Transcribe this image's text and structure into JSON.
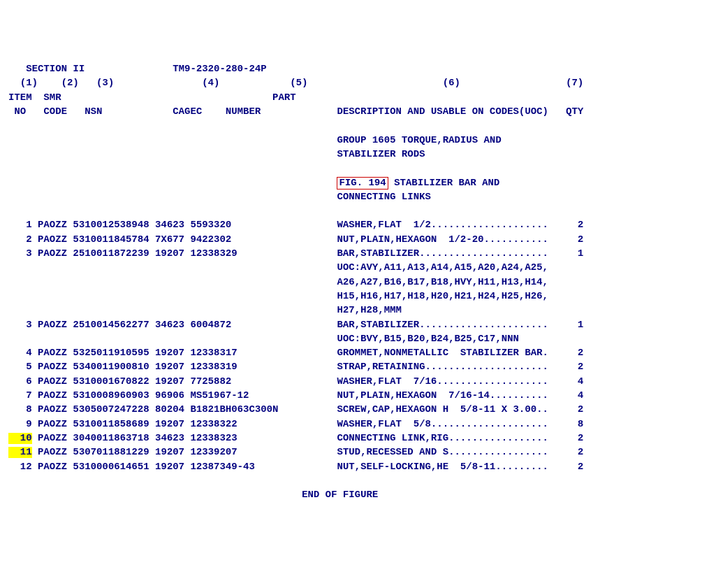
{
  "header": {
    "section_label": "SECTION II",
    "manual_number": "TM9-2320-280-24P",
    "col_nums": [
      "(1)",
      "(2)",
      "(3)",
      "(4)",
      "(5)",
      "(6)",
      "(7)"
    ],
    "col1a": "ITEM",
    "col2a": "SMR",
    "col5a": "PART",
    "col1b": "NO",
    "col2b": "CODE",
    "col3b": "NSN",
    "col4b": "CAGEC",
    "col5b": "NUMBER",
    "col6b": "DESCRIPTION AND USABLE ON CODES(UOC)",
    "col7b": "QTY"
  },
  "group_line1": "GROUP 1605 TORQUE,RADIUS AND",
  "group_line2": "STABILIZER RODS",
  "fig_label": "FIG. 194",
  "fig_title_rest": " STABILIZER BAR AND",
  "fig_title_line2": "CONNECTING LINKS",
  "highlight_item_10": "10",
  "highlight_item_11": "11",
  "rows": [
    {
      "no": "1",
      "smr": "PAOZZ",
      "nsn": "5310012538948",
      "cagec": "34623",
      "part": "5593320",
      "desc": "WASHER,FLAT  1/2....................",
      "qty": "2"
    },
    {
      "no": "2",
      "smr": "PAOZZ",
      "nsn": "5310011845784",
      "cagec": "7X677",
      "part": "9422302",
      "desc": "NUT,PLAIN,HEXAGON  1/2-20...........",
      "qty": "2"
    },
    {
      "no": "3",
      "smr": "PAOZZ",
      "nsn": "2510011872239",
      "cagec": "19207",
      "part": "12338329",
      "desc": "BAR,STABILIZER......................",
      "qty": "1"
    },
    {
      "no": "",
      "smr": "",
      "nsn": "",
      "cagec": "",
      "part": "",
      "desc": "UOC:AVY,A11,A13,A14,A15,A20,A24,A25,",
      "qty": ""
    },
    {
      "no": "",
      "smr": "",
      "nsn": "",
      "cagec": "",
      "part": "",
      "desc": "A26,A27,B16,B17,B18,HVY,H11,H13,H14,",
      "qty": ""
    },
    {
      "no": "",
      "smr": "",
      "nsn": "",
      "cagec": "",
      "part": "",
      "desc": "H15,H16,H17,H18,H20,H21,H24,H25,H26,",
      "qty": ""
    },
    {
      "no": "",
      "smr": "",
      "nsn": "",
      "cagec": "",
      "part": "",
      "desc": "H27,H28,MMM",
      "qty": ""
    },
    {
      "no": "3",
      "smr": "PAOZZ",
      "nsn": "2510014562277",
      "cagec": "34623",
      "part": "6004872",
      "desc": "BAR,STABILIZER......................",
      "qty": "1"
    },
    {
      "no": "",
      "smr": "",
      "nsn": "",
      "cagec": "",
      "part": "",
      "desc": "UOC:BVY,B15,B20,B24,B25,C17,NNN",
      "qty": ""
    },
    {
      "no": "4",
      "smr": "PAOZZ",
      "nsn": "5325011910595",
      "cagec": "19207",
      "part": "12338317",
      "desc": "GROMMET,NONMETALLIC  STABILIZER BAR.",
      "qty": "2"
    },
    {
      "no": "5",
      "smr": "PAOZZ",
      "nsn": "5340011900810",
      "cagec": "19207",
      "part": "12338319",
      "desc": "STRAP,RETAINING.....................",
      "qty": "2"
    },
    {
      "no": "6",
      "smr": "PAOZZ",
      "nsn": "5310001670822",
      "cagec": "19207",
      "part": "7725882",
      "desc": "WASHER,FLAT  7/16...................",
      "qty": "4"
    },
    {
      "no": "7",
      "smr": "PAOZZ",
      "nsn": "5310008960903",
      "cagec": "96906",
      "part": "MS51967-12",
      "desc": "NUT,PLAIN,HEXAGON  7/16-14..........",
      "qty": "4"
    },
    {
      "no": "8",
      "smr": "PAOZZ",
      "nsn": "5305007247228",
      "cagec": "80204",
      "part": "B1821BH063C300N",
      "desc": "SCREW,CAP,HEXAGON H  5/8-11 X 3.00..",
      "qty": "2"
    },
    {
      "no": "9",
      "smr": "PAOZZ",
      "nsn": "5310011858689",
      "cagec": "19207",
      "part": "12338322",
      "desc": "WASHER,FLAT  5/8....................",
      "qty": "8"
    },
    {
      "no": "10",
      "smr": "PAOZZ",
      "nsn": "3040011863718",
      "cagec": "34623",
      "part": "12338323",
      "desc": "CONNECTING LINK,RIG.................",
      "qty": "2"
    },
    {
      "no": "11",
      "smr": "PAOZZ",
      "nsn": "5307011881229",
      "cagec": "19207",
      "part": "12339207",
      "desc": "STUD,RECESSED AND S.................",
      "qty": "2"
    },
    {
      "no": "12",
      "smr": "PAOZZ",
      "nsn": "5310000614651",
      "cagec": "19207",
      "part": "12387349-43",
      "desc": "NUT,SELF-LOCKING,HE  5/8-11.........",
      "qty": "2"
    }
  ],
  "end_label": "END OF FIGURE"
}
